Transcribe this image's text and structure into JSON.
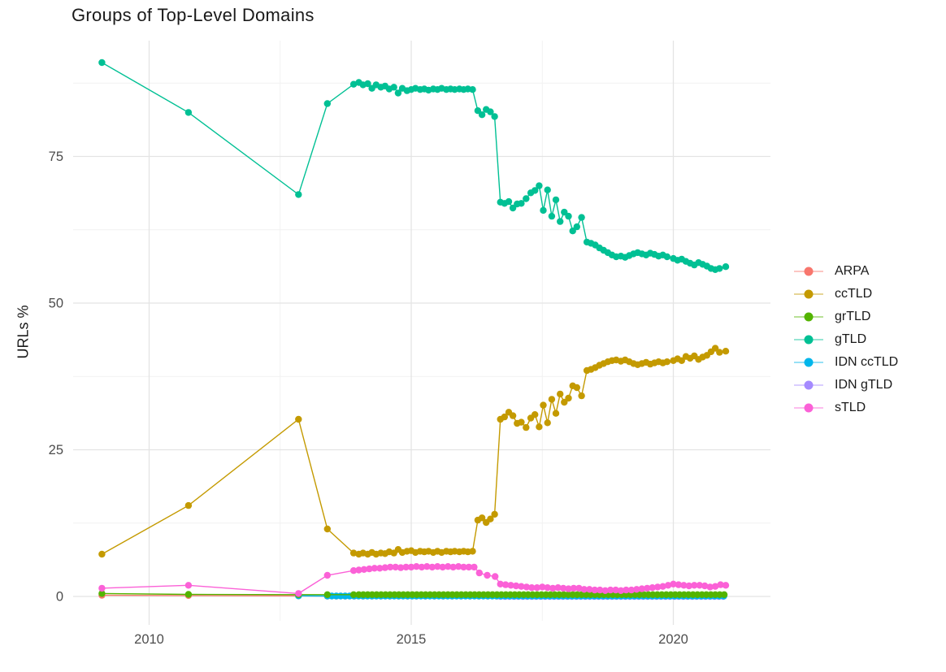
{
  "title": "Groups of Top-Level Domains",
  "axes": {
    "y_label": "URLs %",
    "y_ticks": [
      0,
      25,
      50,
      75
    ],
    "y_minor": [
      12.5,
      37.5,
      62.5,
      87.5
    ],
    "x_ticks": [
      2010,
      2015,
      2020
    ],
    "x_minor": [
      2012.5,
      2017.5
    ],
    "tick_label_color": "#4d4d4d",
    "grid_major_color": "#e4e4e4",
    "grid_minor_color": "#f1f1f1"
  },
  "legend": {
    "items": [
      {
        "label": "ARPA",
        "color": "#F8766D"
      },
      {
        "label": "ccTLD",
        "color": "#C49A00"
      },
      {
        "label": "grTLD",
        "color": "#53B400"
      },
      {
        "label": "gTLD",
        "color": "#00C094"
      },
      {
        "label": "IDN ccTLD",
        "color": "#00B6EB"
      },
      {
        "label": "IDN gTLD",
        "color": "#A58AFF"
      },
      {
        "label": "sTLD",
        "color": "#FB61D7"
      }
    ]
  },
  "chart_data": {
    "type": "line",
    "title": "Groups of Top-Level Domains",
    "xlabel": "",
    "ylabel": "URLs %",
    "x_range": [
      2008.55,
      2021.85
    ],
    "y_range": [
      -3.7,
      94.7
    ],
    "grid": true,
    "legend_position": "right",
    "paint_order": [
      0,
      5,
      4,
      2,
      1,
      3,
      6
    ],
    "series": [
      {
        "name": "ARPA",
        "color": "#F8766D",
        "points": [
          [
            2009.1,
            0.2
          ],
          [
            2010.75,
            0.15
          ],
          [
            2012.85,
            0.1
          ]
        ],
        "flat": {
          "from": 2013.4,
          "to": 2021.0,
          "step": 0.17,
          "value": 0.05
        }
      },
      {
        "name": "ccTLD",
        "color": "#C49A00",
        "points": [
          [
            2009.1,
            7.2
          ],
          [
            2010.75,
            15.5
          ],
          [
            2012.85,
            30.2
          ],
          [
            2013.4,
            11.5
          ],
          [
            2013.9,
            7.4
          ],
          [
            2014,
            7.2
          ],
          [
            2014.08,
            7.4
          ],
          [
            2014.17,
            7.2
          ],
          [
            2014.25,
            7.5
          ],
          [
            2014.33,
            7.2
          ],
          [
            2014.42,
            7.4
          ],
          [
            2014.5,
            7.3
          ],
          [
            2014.58,
            7.6
          ],
          [
            2014.67,
            7.4
          ],
          [
            2014.75,
            8.0
          ],
          [
            2014.83,
            7.5
          ],
          [
            2014.92,
            7.7
          ],
          [
            2015,
            7.8
          ],
          [
            2015.08,
            7.5
          ],
          [
            2015.17,
            7.7
          ],
          [
            2015.25,
            7.6
          ],
          [
            2015.33,
            7.7
          ],
          [
            2015.42,
            7.5
          ],
          [
            2015.5,
            7.7
          ],
          [
            2015.58,
            7.5
          ],
          [
            2015.67,
            7.7
          ],
          [
            2015.75,
            7.6
          ],
          [
            2015.83,
            7.7
          ],
          [
            2015.92,
            7.6
          ],
          [
            2016,
            7.7
          ],
          [
            2016.08,
            7.6
          ],
          [
            2016.17,
            7.7
          ],
          [
            2016.27,
            13.0
          ],
          [
            2016.35,
            13.4
          ],
          [
            2016.43,
            12.6
          ],
          [
            2016.51,
            13.2
          ],
          [
            2016.59,
            14.0
          ],
          [
            2016.7,
            30.2
          ],
          [
            2016.78,
            30.6
          ],
          [
            2016.86,
            31.4
          ],
          [
            2016.94,
            30.8
          ],
          [
            2017.02,
            29.5
          ],
          [
            2017.1,
            29.7
          ],
          [
            2017.19,
            28.8
          ],
          [
            2017.28,
            30.4
          ],
          [
            2017.36,
            31.0
          ],
          [
            2017.44,
            28.9
          ],
          [
            2017.52,
            32.6
          ],
          [
            2017.6,
            29.6
          ],
          [
            2017.68,
            33.6
          ],
          [
            2017.76,
            31.2
          ],
          [
            2017.84,
            34.5
          ],
          [
            2017.92,
            33.1
          ],
          [
            2018,
            33.8
          ],
          [
            2018.08,
            35.9
          ],
          [
            2018.16,
            35.6
          ],
          [
            2018.25,
            34.2
          ],
          [
            2018.35,
            38.5
          ],
          [
            2018.43,
            38.7
          ],
          [
            2018.51,
            39.0
          ],
          [
            2018.59,
            39.4
          ],
          [
            2018.67,
            39.7
          ],
          [
            2018.75,
            40.0
          ],
          [
            2018.83,
            40.2
          ],
          [
            2018.91,
            40.3
          ],
          [
            2019,
            40.1
          ],
          [
            2019.08,
            40.3
          ],
          [
            2019.16,
            40.0
          ],
          [
            2019.24,
            39.7
          ],
          [
            2019.32,
            39.5
          ],
          [
            2019.4,
            39.7
          ],
          [
            2019.48,
            39.9
          ],
          [
            2019.56,
            39.6
          ],
          [
            2019.64,
            39.8
          ],
          [
            2019.72,
            40.0
          ],
          [
            2019.8,
            39.8
          ],
          [
            2019.88,
            40.0
          ],
          [
            2020,
            40.2
          ],
          [
            2020.08,
            40.5
          ],
          [
            2020.16,
            40.2
          ],
          [
            2020.24,
            40.9
          ],
          [
            2020.32,
            40.6
          ],
          [
            2020.4,
            41.0
          ],
          [
            2020.48,
            40.4
          ],
          [
            2020.56,
            40.8
          ],
          [
            2020.64,
            41.1
          ],
          [
            2020.72,
            41.7
          ],
          [
            2020.8,
            42.3
          ],
          [
            2020.88,
            41.6
          ],
          [
            2021,
            41.8
          ]
        ]
      },
      {
        "name": "grTLD",
        "color": "#53B400",
        "points": [
          [
            2009.1,
            0.5
          ],
          [
            2010.75,
            0.35
          ],
          [
            2012.85,
            0.3
          ],
          [
            2013.4,
            0.3
          ],
          [
            2013.9,
            0.3
          ]
        ],
        "flat": {
          "from": 2014.0,
          "to": 2021.0,
          "step": 0.085,
          "value": 0.3
        }
      },
      {
        "name": "gTLD",
        "color": "#00C094",
        "points": [
          [
            2009.1,
            91.0
          ],
          [
            2010.75,
            82.5
          ],
          [
            2012.85,
            68.5
          ],
          [
            2013.4,
            84.0
          ],
          [
            2013.9,
            87.3
          ],
          [
            2014,
            87.6
          ],
          [
            2014.08,
            87.2
          ],
          [
            2014.17,
            87.4
          ],
          [
            2014.25,
            86.6
          ],
          [
            2014.33,
            87.2
          ],
          [
            2014.42,
            86.8
          ],
          [
            2014.5,
            87.0
          ],
          [
            2014.58,
            86.5
          ],
          [
            2014.67,
            86.8
          ],
          [
            2014.75,
            85.8
          ],
          [
            2014.83,
            86.6
          ],
          [
            2014.92,
            86.2
          ],
          [
            2015,
            86.4
          ],
          [
            2015.08,
            86.6
          ],
          [
            2015.17,
            86.4
          ],
          [
            2015.25,
            86.5
          ],
          [
            2015.33,
            86.3
          ],
          [
            2015.42,
            86.5
          ],
          [
            2015.5,
            86.4
          ],
          [
            2015.58,
            86.6
          ],
          [
            2015.67,
            86.4
          ],
          [
            2015.75,
            86.5
          ],
          [
            2015.83,
            86.4
          ],
          [
            2015.92,
            86.5
          ],
          [
            2016,
            86.4
          ],
          [
            2016.08,
            86.5
          ],
          [
            2016.17,
            86.4
          ],
          [
            2016.27,
            82.8
          ],
          [
            2016.35,
            82.1
          ],
          [
            2016.43,
            83.0
          ],
          [
            2016.51,
            82.6
          ],
          [
            2016.59,
            81.8
          ],
          [
            2016.7,
            67.2
          ],
          [
            2016.78,
            67.0
          ],
          [
            2016.86,
            67.3
          ],
          [
            2016.94,
            66.2
          ],
          [
            2017.02,
            66.9
          ],
          [
            2017.1,
            67.0
          ],
          [
            2017.19,
            67.8
          ],
          [
            2017.28,
            68.8
          ],
          [
            2017.36,
            69.2
          ],
          [
            2017.44,
            70.0
          ],
          [
            2017.52,
            65.8
          ],
          [
            2017.6,
            69.3
          ],
          [
            2017.68,
            64.8
          ],
          [
            2017.76,
            67.6
          ],
          [
            2017.84,
            63.9
          ],
          [
            2017.92,
            65.5
          ],
          [
            2018,
            64.8
          ],
          [
            2018.08,
            62.3
          ],
          [
            2018.16,
            63.0
          ],
          [
            2018.25,
            64.6
          ],
          [
            2018.35,
            60.4
          ],
          [
            2018.43,
            60.2
          ],
          [
            2018.51,
            59.9
          ],
          [
            2018.59,
            59.4
          ],
          [
            2018.67,
            59.0
          ],
          [
            2018.75,
            58.6
          ],
          [
            2018.83,
            58.2
          ],
          [
            2018.91,
            57.9
          ],
          [
            2019,
            58.0
          ],
          [
            2019.08,
            57.8
          ],
          [
            2019.16,
            58.1
          ],
          [
            2019.24,
            58.4
          ],
          [
            2019.32,
            58.6
          ],
          [
            2019.4,
            58.4
          ],
          [
            2019.48,
            58.2
          ],
          [
            2019.56,
            58.5
          ],
          [
            2019.64,
            58.3
          ],
          [
            2019.72,
            58.0
          ],
          [
            2019.8,
            58.2
          ],
          [
            2019.88,
            57.9
          ],
          [
            2020,
            57.6
          ],
          [
            2020.08,
            57.3
          ],
          [
            2020.16,
            57.5
          ],
          [
            2020.24,
            57.1
          ],
          [
            2020.32,
            56.8
          ],
          [
            2020.4,
            56.5
          ],
          [
            2020.48,
            56.9
          ],
          [
            2020.56,
            56.6
          ],
          [
            2020.64,
            56.3
          ],
          [
            2020.72,
            55.9
          ],
          [
            2020.8,
            55.7
          ],
          [
            2020.88,
            55.9
          ],
          [
            2021,
            56.2
          ]
        ]
      },
      {
        "name": "IDN ccTLD",
        "color": "#00B6EB",
        "points": [
          [
            2012.85,
            0.1
          ]
        ],
        "flat": {
          "from": 2013.4,
          "to": 2021.0,
          "step": 0.085,
          "value": 0.07
        }
      },
      {
        "name": "IDN gTLD",
        "color": "#A58AFF",
        "points": [],
        "flat": {
          "from": 2016.7,
          "to": 2021.0,
          "step": 0.085,
          "value": 0.0
        }
      },
      {
        "name": "sTLD",
        "color": "#FB61D7",
        "points": [
          [
            2009.1,
            1.4
          ],
          [
            2010.75,
            1.9
          ],
          [
            2012.85,
            0.5
          ],
          [
            2013.4,
            3.6
          ],
          [
            2013.9,
            4.4
          ],
          [
            2014,
            4.5
          ],
          [
            2014.1,
            4.6
          ],
          [
            2014.2,
            4.7
          ],
          [
            2014.3,
            4.8
          ],
          [
            2014.4,
            4.8
          ],
          [
            2014.5,
            4.9
          ],
          [
            2014.6,
            5.0
          ],
          [
            2014.7,
            5.0
          ],
          [
            2014.8,
            4.9
          ],
          [
            2014.9,
            5.0
          ],
          [
            2015,
            5.0
          ],
          [
            2015.1,
            5.1
          ],
          [
            2015.2,
            5.0
          ],
          [
            2015.3,
            5.1
          ],
          [
            2015.4,
            5.0
          ],
          [
            2015.5,
            5.1
          ],
          [
            2015.6,
            5.0
          ],
          [
            2015.7,
            5.1
          ],
          [
            2015.8,
            5.0
          ],
          [
            2015.9,
            5.1
          ],
          [
            2016,
            5.0
          ],
          [
            2016.1,
            5.0
          ],
          [
            2016.2,
            5.0
          ],
          [
            2016.3,
            4.0
          ],
          [
            2016.45,
            3.6
          ],
          [
            2016.6,
            3.4
          ],
          [
            2016.7,
            2.1
          ],
          [
            2016.8,
            2.0
          ],
          [
            2016.9,
            1.9
          ],
          [
            2017,
            1.8
          ],
          [
            2017.1,
            1.7
          ],
          [
            2017.2,
            1.6
          ],
          [
            2017.3,
            1.5
          ],
          [
            2017.4,
            1.5
          ],
          [
            2017.5,
            1.6
          ],
          [
            2017.6,
            1.5
          ],
          [
            2017.7,
            1.4
          ],
          [
            2017.8,
            1.5
          ],
          [
            2017.9,
            1.4
          ],
          [
            2018,
            1.3
          ],
          [
            2018.1,
            1.4
          ],
          [
            2018.2,
            1.4
          ],
          [
            2018.3,
            1.2
          ],
          [
            2018.4,
            1.2
          ],
          [
            2018.5,
            1.1
          ],
          [
            2018.6,
            1.1
          ],
          [
            2018.7,
            1.0
          ],
          [
            2018.8,
            1.1
          ],
          [
            2018.9,
            1.1
          ],
          [
            2019,
            1.0
          ],
          [
            2019.1,
            1.1
          ],
          [
            2019.2,
            1.1
          ],
          [
            2019.3,
            1.2
          ],
          [
            2019.4,
            1.3
          ],
          [
            2019.5,
            1.4
          ],
          [
            2019.6,
            1.5
          ],
          [
            2019.7,
            1.6
          ],
          [
            2019.8,
            1.7
          ],
          [
            2019.9,
            1.9
          ],
          [
            2020,
            2.1
          ],
          [
            2020.1,
            2.0
          ],
          [
            2020.2,
            1.9
          ],
          [
            2020.3,
            1.8
          ],
          [
            2020.4,
            1.9
          ],
          [
            2020.5,
            1.9
          ],
          [
            2020.6,
            1.8
          ],
          [
            2020.7,
            1.6
          ],
          [
            2020.8,
            1.7
          ],
          [
            2020.9,
            2.0
          ],
          [
            2021,
            1.9
          ]
        ]
      }
    ]
  }
}
